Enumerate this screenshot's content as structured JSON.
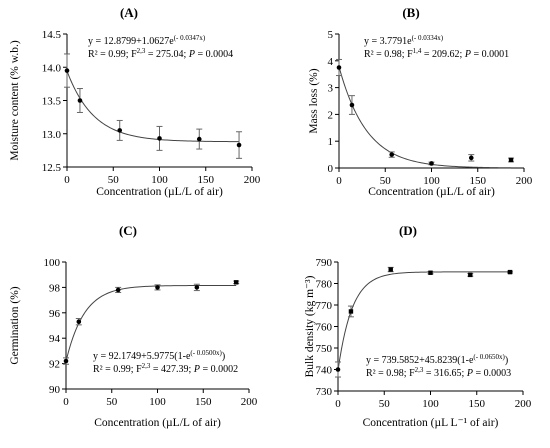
{
  "chart_data": [
    {
      "type": "scatter",
      "panel": "(A)",
      "xlabel": "Concentration (µL/L of air)",
      "ylabel": "Moisture content (% w.b.)",
      "xlim": [
        0,
        200
      ],
      "ylim": [
        12.5,
        14.5
      ],
      "xticks": [
        "0",
        "50",
        "100",
        "150",
        "200"
      ],
      "yticks": [
        "12.5",
        "13.0",
        "13.5",
        "14.0",
        "14.5"
      ],
      "x": [
        0,
        14,
        57,
        100,
        143,
        186
      ],
      "y": [
        13.95,
        13.5,
        13.05,
        12.93,
        12.92,
        12.83
      ],
      "err": [
        0.25,
        0.18,
        0.15,
        0.18,
        0.15,
        0.2
      ],
      "fit": {
        "model": "exp_decay",
        "a": 12.8799,
        "b": 1.0627,
        "k": 0.0347
      },
      "equation": {
        "pre": "y = 12.8799+1.0627e",
        "exp": "(- 0.0347x)",
        "r2": "R² = 0.99; F",
        "df": "2,3",
        "stat": " = 275.04; ",
        "p": "P",
        "pval": " = 0.0004"
      },
      "grid": false,
      "legend": "none"
    },
    {
      "type": "scatter",
      "panel": "(B)",
      "xlabel": "Concentration (µL/L of air)",
      "ylabel": "Mass loss (%)",
      "xlim": [
        0,
        200
      ],
      "ylim": [
        0,
        5
      ],
      "xticks": [
        "0",
        "50",
        "100",
        "150",
        "200"
      ],
      "yticks": [
        "0",
        "1",
        "2",
        "3",
        "4",
        "5"
      ],
      "x": [
        0,
        14,
        57,
        100,
        143,
        186
      ],
      "y": [
        3.75,
        2.35,
        0.5,
        0.17,
        0.38,
        0.3
      ],
      "err": [
        0.3,
        0.35,
        0.1,
        0.05,
        0.12,
        0.07
      ],
      "fit": {
        "model": "exp_decay",
        "a": 0,
        "b": 3.7791,
        "k": 0.0334
      },
      "equation": {
        "pre": "y = 3.7791e",
        "exp": "(- 0.0334x)",
        "r2": "R² = 0.98; F",
        "df": "1,4",
        "stat": " = 209.62; ",
        "p": "P",
        "pval": " = 0.0001"
      },
      "grid": false,
      "legend": "none"
    },
    {
      "type": "scatter",
      "panel": "(C)",
      "xlabel": "Concentration (µL/L of air)",
      "ylabel": "Germination (%)",
      "xlim": [
        0,
        200
      ],
      "ylim": [
        90,
        100
      ],
      "xticks": [
        "0",
        "50",
        "100",
        "150",
        "200"
      ],
      "yticks": [
        "90",
        "92",
        "94",
        "96",
        "98",
        "100"
      ],
      "x": [
        0,
        14,
        57,
        100,
        143,
        186
      ],
      "y": [
        92.2,
        95.3,
        97.8,
        98.0,
        98.0,
        98.4
      ],
      "err": [
        0.25,
        0.25,
        0.2,
        0.2,
        0.25,
        0.1
      ],
      "fit": {
        "model": "exp_rise",
        "a": 92.1749,
        "b": 5.9775,
        "k": 0.05
      },
      "equation": {
        "pre": "y = 92.1749+5.9775(1-e",
        "exp": "(- 0.0500x)",
        "post": ")",
        "r2": "R² = 0.99; F",
        "df": "2,3",
        "stat": " = 427.39; ",
        "p": "P",
        "pval": " = 0.0002"
      },
      "grid": false,
      "legend": "none"
    },
    {
      "type": "scatter",
      "panel": "(D)",
      "xlabel": "Concentration (µL L⁻¹ of air)",
      "ylabel": "Bulk density (kg m⁻³)",
      "xlim": [
        0,
        200
      ],
      "ylim": [
        730,
        790
      ],
      "xticks": [
        "0",
        "50",
        "100",
        "150",
        "200"
      ],
      "yticks": [
        "730",
        "740",
        "750",
        "760",
        "770",
        "780",
        "790"
      ],
      "x": [
        0,
        14,
        57,
        100,
        143,
        186
      ],
      "y": [
        740,
        767,
        786.5,
        785,
        784,
        785.3
      ],
      "err": [
        3.5,
        2.5,
        1,
        0.5,
        0.6,
        0.4
      ],
      "fit": {
        "model": "exp_rise",
        "a": 739.5852,
        "b": 45.8239,
        "k": 0.065
      },
      "equation": {
        "pre": "y = 739.5852+45.8239(1-e",
        "exp": "(- 0.0650x)",
        "post": ")",
        "r2": "R² = 0.98; F",
        "df": "2,3",
        "stat": " = 316.65; ",
        "p": "P",
        "pval": " = 0.0003"
      },
      "grid": false,
      "legend": "none"
    }
  ]
}
